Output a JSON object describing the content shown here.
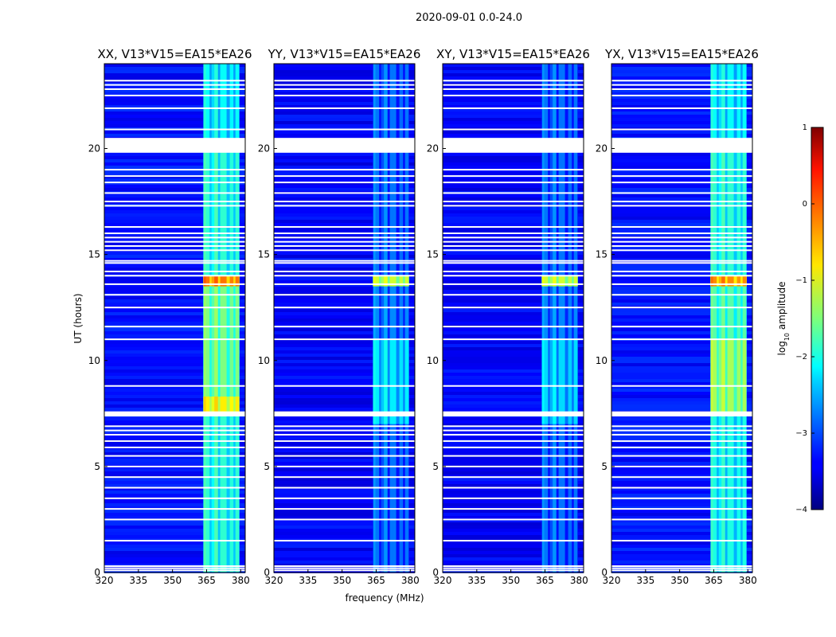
{
  "figure": {
    "suptitle": "2020-09-01 0.0-24.0"
  },
  "chart_data": {
    "type": "heatmap",
    "xlabel": "frequency (MHz)",
    "ylabel": "UT (hours)",
    "xlim": [
      320,
      382
    ],
    "ylim": [
      0,
      24
    ],
    "xticks": [
      320,
      335,
      350,
      365,
      380
    ],
    "yticks": [
      0,
      5,
      10,
      15,
      20
    ],
    "colorbar": {
      "label": "log10 amplitude",
      "label_main": "log",
      "label_sub": "10",
      "label_rest": " amplitude",
      "min": -4,
      "max": 1,
      "ticks": [
        1,
        0,
        -1,
        -2,
        -3,
        -4
      ],
      "tick_labels": [
        "1",
        "0",
        "−1",
        "−2",
        "−3",
        "−4"
      ],
      "colormap": "jet"
    },
    "rfi_band_mhz": [
      363.5,
      379.5
    ],
    "rfi_channel_centers_mhz": [
      364.5,
      365.5,
      368.0,
      369.2,
      371.8,
      373.0,
      376.0,
      378.5
    ],
    "flag_lines_ut": [
      0.1,
      0.2,
      0.3,
      1.5,
      2.5,
      3.0,
      3.5,
      4.0,
      4.5,
      5.0,
      5.5,
      5.9,
      6.2,
      6.5,
      6.7,
      6.9,
      7.4,
      8.8,
      11.0,
      11.6,
      12.5,
      13.1,
      13.6,
      14.0,
      14.2,
      14.6,
      14.7,
      15.2,
      15.4,
      15.6,
      15.8,
      16.0,
      16.3,
      17.3,
      17.5,
      17.9,
      18.4,
      18.7,
      19.0,
      20.9,
      21.9,
      22.5,
      22.8,
      23.0,
      23.2
    ],
    "panels": [
      {
        "title": "XX, V13*V15=EA15*EA26",
        "base_level": -3.3,
        "band_segments": [
          {
            "from": 0,
            "to": 7.5,
            "level": -1.9
          },
          {
            "from": 7.5,
            "to": 8.3,
            "level": -0.8
          },
          {
            "from": 8.3,
            "to": 13.5,
            "level": -1.5
          },
          {
            "from": 13.5,
            "to": 14.0,
            "level": -0.2
          },
          {
            "from": 14.0,
            "to": 20.0,
            "level": -1.9
          },
          {
            "from": 20.0,
            "to": 24,
            "level": -2.1
          }
        ]
      },
      {
        "title": "YY, V13*V15=EA15*EA26",
        "base_level": -3.4,
        "band_segments": [
          {
            "from": 0,
            "to": 7.0,
            "level": -2.8
          },
          {
            "from": 7.0,
            "to": 11.0,
            "level": -2.2
          },
          {
            "from": 11.0,
            "to": 13.5,
            "level": -2.7
          },
          {
            "from": 13.5,
            "to": 14.0,
            "level": -1.1
          },
          {
            "from": 14.0,
            "to": 24,
            "level": -2.8
          }
        ]
      },
      {
        "title": "XY, V13*V15=EA15*EA26",
        "base_level": -3.4,
        "band_segments": [
          {
            "from": 0,
            "to": 7.0,
            "level": -2.8
          },
          {
            "from": 7.0,
            "to": 11.0,
            "level": -2.3
          },
          {
            "from": 11.0,
            "to": 13.5,
            "level": -2.7
          },
          {
            "from": 13.5,
            "to": 14.0,
            "level": -1.1
          },
          {
            "from": 14.0,
            "to": 24,
            "level": -2.8
          }
        ]
      },
      {
        "title": "YX, V13*V15=EA15*EA26",
        "base_level": -3.3,
        "band_segments": [
          {
            "from": 0,
            "to": 7.5,
            "level": -2.0
          },
          {
            "from": 7.5,
            "to": 11.0,
            "level": -1.3
          },
          {
            "from": 11.0,
            "to": 13.5,
            "level": -1.7
          },
          {
            "from": 13.5,
            "to": 14.0,
            "level": -0.3
          },
          {
            "from": 14.0,
            "to": 20.0,
            "level": -1.9
          },
          {
            "from": 20.0,
            "to": 24,
            "level": -2.1
          }
        ]
      }
    ]
  }
}
